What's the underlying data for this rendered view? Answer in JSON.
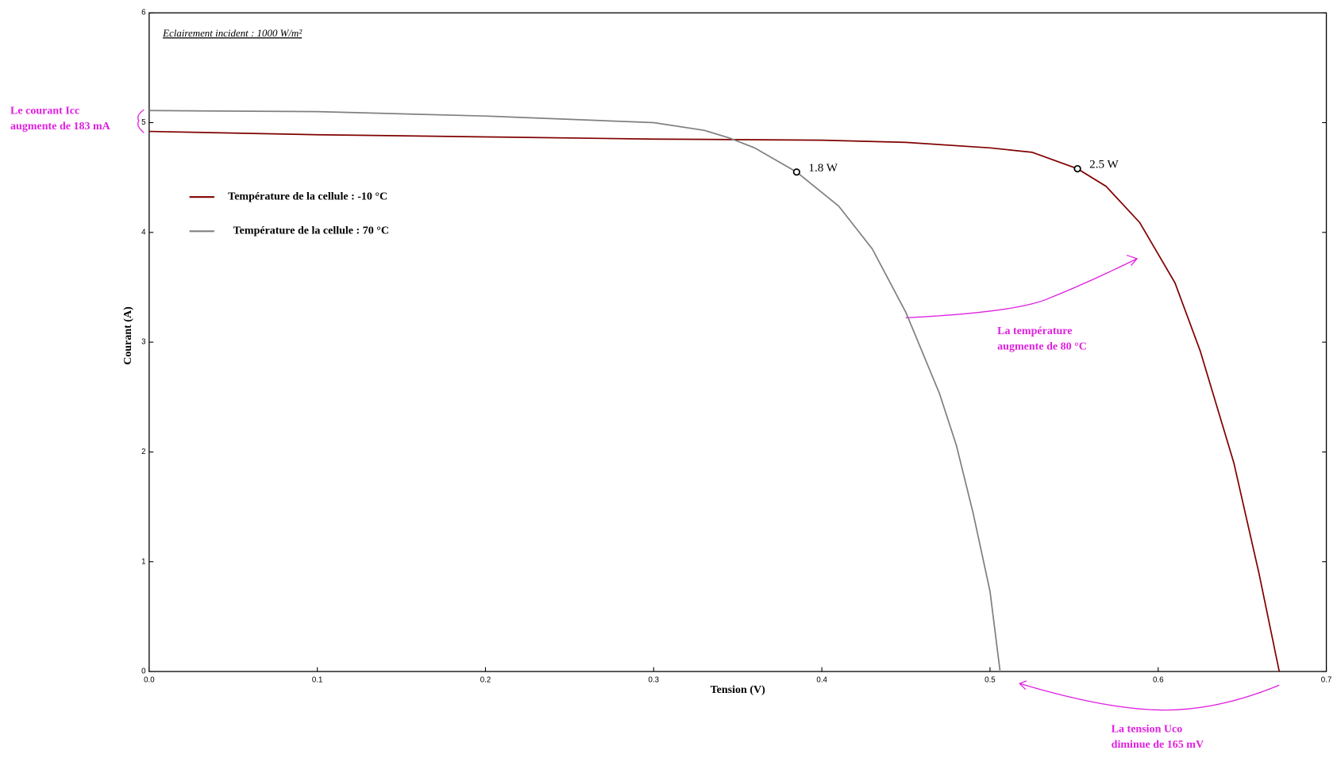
{
  "chart_data": {
    "type": "line",
    "title": "Eclairement incident : 1000 W/m²",
    "x_label": "Tension (V)",
    "y_label": "Courant (A)",
    "xlim": [
      0,
      0.7
    ],
    "ylim": [
      0,
      6
    ],
    "xticks": [
      {
        "value": 0,
        "label": "0.0"
      },
      0.1,
      0.2,
      0.3,
      0.4,
      0.5,
      0.6,
      0.7
    ],
    "yticks": [
      0,
      1,
      2,
      3,
      4,
      5,
      6
    ],
    "legend": "upper left",
    "series": [
      {
        "name": "Température de la cellule : -10 °C",
        "color": "#800000",
        "x": [
          0,
          0.1,
          0.2,
          0.3,
          0.4,
          0.45,
          0.5,
          0.525,
          0.552,
          0.569,
          0.589,
          0.61,
          0.625,
          0.645,
          0.66,
          0.672
        ],
        "values": [
          4.92,
          4.89,
          4.87,
          4.85,
          4.84,
          4.82,
          4.77,
          4.73,
          4.58,
          4.42,
          4.09,
          3.54,
          2.92,
          1.9,
          0.89,
          0
        ]
      },
      {
        "name": "Température de la cellule : 70 °C",
        "color": "#808080",
        "x": [
          0,
          0.1,
          0.2,
          0.3,
          0.33,
          0.345,
          0.36,
          0.385,
          0.41,
          0.43,
          0.45,
          0.47,
          0.48,
          0.49,
          0.5,
          0.506
        ],
        "values": [
          5.11,
          5.1,
          5.06,
          5.0,
          4.93,
          4.86,
          4.77,
          4.55,
          4.24,
          3.85,
          3.27,
          2.53,
          2.06,
          1.44,
          0.73,
          0
        ]
      }
    ],
    "markers": [
      {
        "x": 0.385,
        "y": 4.55,
        "label": "1.8 W"
      },
      {
        "x": 0.552,
        "y": 4.58,
        "label": "2.5 W"
      }
    ],
    "annotations": [
      {
        "lines": [
          "Le courant Icc",
          "augmente de 183 mA"
        ],
        "color": "#e020e0"
      },
      {
        "lines": [
          "La température",
          "augmente de 80 °C"
        ],
        "color": "#e020e0"
      },
      {
        "lines": [
          "La tension Uco",
          "diminue de 165 mV"
        ],
        "color": "#e020e0"
      }
    ]
  }
}
